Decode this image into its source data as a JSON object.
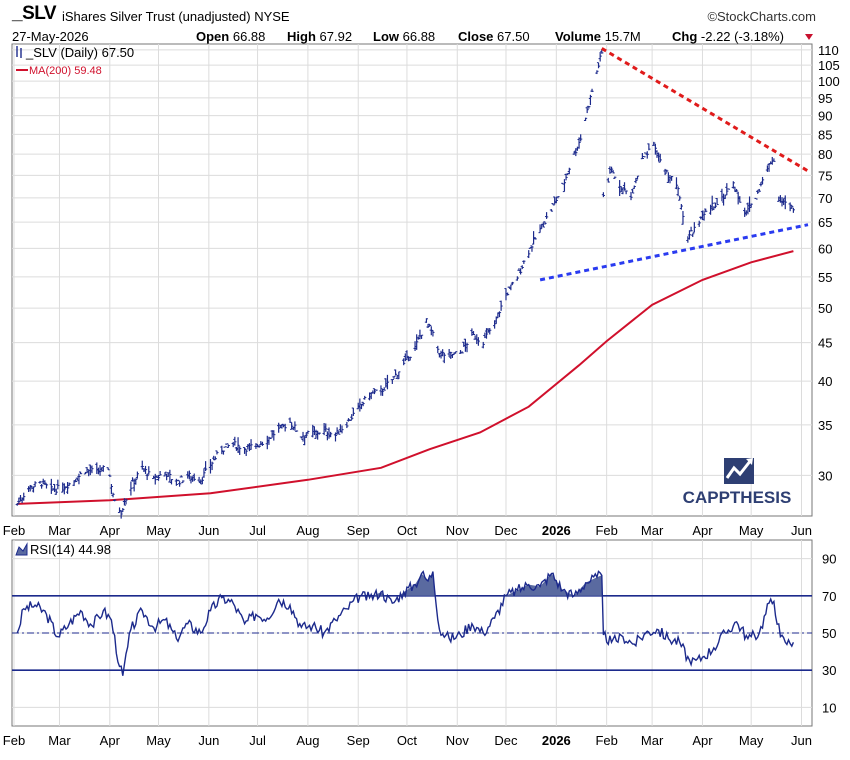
{
  "header": {
    "symbol": "_SLV",
    "name": "iShares Silver Trust (unadjusted) NYSE",
    "brand": "©StockCharts.com",
    "date": "27-May-2026",
    "open_label": "Open",
    "open": "66.88",
    "high_label": "High",
    "high": "67.92",
    "low_label": "Low",
    "low": "66.88",
    "close_label": "Close",
    "close": "67.50",
    "volume_label": "Volume",
    "volume": "15.7M",
    "chg_label": "Chg",
    "chg": "-2.22 (-3.18%)"
  },
  "legend": {
    "price": "_SLV (Daily) 67.50",
    "ma": "MA(200) 59.48",
    "rsi": "RSI(14) 44.98"
  },
  "watermark": {
    "text": "CAPPTHESIS"
  },
  "colors": {
    "price": "#1c2a8c",
    "ma": "#d0102c",
    "resistance": "#e01b1b",
    "support": "#2a3bf0",
    "rsi": "#1c2a8c",
    "rsi_fill": "#5a6aa0",
    "grid": "#dcdcdc",
    "watermark": "#2e3f73"
  },
  "chart_data": [
    {
      "type": "line",
      "panel": "price",
      "y_scale": "log",
      "ylim": [
        26.5,
        112
      ],
      "x_ticks": [
        "Feb",
        "Mar",
        "Apr",
        "May",
        "Jun",
        "Jul",
        "Aug",
        "Sep",
        "Oct",
        "Nov",
        "Dec",
        "2026",
        "Feb",
        "Mar",
        "Apr",
        "May",
        "Jun"
      ],
      "y_ticks": [
        30,
        35,
        40,
        45,
        50,
        55,
        60,
        65,
        70,
        75,
        80,
        85,
        90,
        95,
        100,
        105,
        110
      ],
      "series": [
        {
          "name": "_SLV (Daily)",
          "style": "ohlc-bars",
          "points": [
            [
              "2025-02-03",
              27.5
            ],
            [
              "2025-02-10",
              28.9
            ],
            [
              "2025-02-18",
              29.3
            ],
            [
              "2025-02-24",
              28.7
            ],
            [
              "2025-03-03",
              28.9
            ],
            [
              "2025-03-10",
              29.5
            ],
            [
              "2025-03-17",
              30.5
            ],
            [
              "2025-03-24",
              30.3
            ],
            [
              "2025-03-31",
              30.7
            ],
            [
              "2025-04-04",
              27.6
            ],
            [
              "2025-04-08",
              26.9
            ],
            [
              "2025-04-14",
              29.0
            ],
            [
              "2025-04-21",
              30.7
            ],
            [
              "2025-04-28",
              29.6
            ],
            [
              "2025-05-05",
              30.3
            ],
            [
              "2025-05-12",
              29.3
            ],
            [
              "2025-05-19",
              30.0
            ],
            [
              "2025-05-27",
              29.6
            ],
            [
              "2025-06-02",
              31.0
            ],
            [
              "2025-06-09",
              32.5
            ],
            [
              "2025-06-16",
              33.0
            ],
            [
              "2025-06-23",
              32.6
            ],
            [
              "2025-06-30",
              32.8
            ],
            [
              "2025-07-07",
              33.5
            ],
            [
              "2025-07-14",
              34.5
            ],
            [
              "2025-07-21",
              35.3
            ],
            [
              "2025-07-28",
              33.9
            ],
            [
              "2025-08-04",
              34.1
            ],
            [
              "2025-08-11",
              34.4
            ],
            [
              "2025-08-18",
              33.9
            ],
            [
              "2025-08-25",
              35.2
            ],
            [
              "2025-09-02",
              37.0
            ],
            [
              "2025-09-08",
              38.4
            ],
            [
              "2025-09-15",
              38.8
            ],
            [
              "2025-09-22",
              40.2
            ],
            [
              "2025-09-29",
              42.1
            ],
            [
              "2025-10-06",
              44.3
            ],
            [
              "2025-10-13",
              48.0
            ],
            [
              "2025-10-17",
              46.0
            ],
            [
              "2025-10-21",
              43.5
            ],
            [
              "2025-10-27",
              43.3
            ],
            [
              "2025-11-03",
              43.6
            ],
            [
              "2025-11-10",
              46.0
            ],
            [
              "2025-11-17",
              45.2
            ],
            [
              "2025-11-24",
              47.8
            ],
            [
              "2025-12-01",
              52.0
            ],
            [
              "2025-12-08",
              55.0
            ],
            [
              "2025-12-15",
              59.5
            ],
            [
              "2025-12-22",
              63.5
            ],
            [
              "2025-12-29",
              67.5
            ],
            [
              "2026-01-05",
              72.5
            ],
            [
              "2026-01-12",
              80.0
            ],
            [
              "2026-01-16",
              84.0
            ],
            [
              "2026-01-22",
              95.0
            ],
            [
              "2026-01-27",
              105.0
            ],
            [
              "2026-01-29",
              109.0
            ],
            [
              "2026-01-30",
              70.5
            ],
            [
              "2026-02-04",
              76.0
            ],
            [
              "2026-02-09",
              73.0
            ],
            [
              "2026-02-16",
              70.0
            ],
            [
              "2026-02-23",
              78.5
            ],
            [
              "2026-03-02",
              82.0
            ],
            [
              "2026-03-09",
              76.0
            ],
            [
              "2026-03-16",
              73.0
            ],
            [
              "2026-03-23",
              62.0
            ],
            [
              "2026-03-30",
              65.0
            ],
            [
              "2026-04-06",
              68.0
            ],
            [
              "2026-04-13",
              70.0
            ],
            [
              "2026-04-20",
              73.0
            ],
            [
              "2026-04-27",
              67.0
            ],
            [
              "2026-05-04",
              70.0
            ],
            [
              "2026-05-11",
              76.5
            ],
            [
              "2026-05-15",
              79.0
            ],
            [
              "2026-05-18",
              70.0
            ],
            [
              "2026-05-22",
              69.0
            ],
            [
              "2026-05-27",
              67.5
            ]
          ]
        },
        {
          "name": "MA(200)",
          "points": [
            [
              "2025-02-03",
              27.5
            ],
            [
              "2025-04-01",
              27.8
            ],
            [
              "2025-06-02",
              28.4
            ],
            [
              "2025-08-01",
              29.6
            ],
            [
              "2025-09-15",
              30.7
            ],
            [
              "2025-10-15",
              32.5
            ],
            [
              "2025-11-15",
              34.2
            ],
            [
              "2025-12-15",
              37.0
            ],
            [
              "2026-01-15",
              42.0
            ],
            [
              "2026-02-01",
              45.2
            ],
            [
              "2026-03-01",
              50.5
            ],
            [
              "2026-04-01",
              54.5
            ],
            [
              "2026-05-01",
              57.5
            ],
            [
              "2026-05-27",
              59.5
            ]
          ]
        },
        {
          "name": "resistance trendline",
          "points": [
            [
              "2026-01-29",
              110.5
            ],
            [
              "2026-06-05",
              76.0
            ]
          ]
        },
        {
          "name": "support trendline",
          "points": [
            [
              "2025-12-22",
              54.5
            ],
            [
              "2026-06-05",
              64.5
            ]
          ]
        }
      ]
    },
    {
      "type": "area",
      "panel": "rsi",
      "ylim": [
        0,
        100
      ],
      "y_ticks": [
        10,
        30,
        50,
        70,
        90
      ],
      "reference_lines": [
        30,
        50,
        70
      ],
      "fill_above": 70,
      "series": [
        {
          "name": "RSI(14)",
          "points": [
            [
              "2025-02-03",
              50
            ],
            [
              "2025-02-07",
              63
            ],
            [
              "2025-02-14",
              65
            ],
            [
              "2025-02-21",
              60
            ],
            [
              "2025-02-28",
              48
            ],
            [
              "2025-03-07",
              55
            ],
            [
              "2025-03-14",
              62
            ],
            [
              "2025-03-21",
              54
            ],
            [
              "2025-03-28",
              62
            ],
            [
              "2025-04-02",
              57
            ],
            [
              "2025-04-07",
              32
            ],
            [
              "2025-04-09",
              27
            ],
            [
              "2025-04-14",
              52
            ],
            [
              "2025-04-21",
              62
            ],
            [
              "2025-04-28",
              53
            ],
            [
              "2025-05-05",
              57
            ],
            [
              "2025-05-12",
              47
            ],
            [
              "2025-05-19",
              55
            ],
            [
              "2025-05-27",
              50
            ],
            [
              "2025-06-02",
              62
            ],
            [
              "2025-06-09",
              69
            ],
            [
              "2025-06-16",
              66
            ],
            [
              "2025-06-23",
              55
            ],
            [
              "2025-06-30",
              60
            ],
            [
              "2025-07-07",
              58
            ],
            [
              "2025-07-14",
              68
            ],
            [
              "2025-07-21",
              65
            ],
            [
              "2025-07-28",
              53
            ],
            [
              "2025-08-04",
              54
            ],
            [
              "2025-08-11",
              50
            ],
            [
              "2025-08-18",
              57
            ],
            [
              "2025-08-25",
              63
            ],
            [
              "2025-09-02",
              70
            ],
            [
              "2025-09-08",
              69
            ],
            [
              "2025-09-15",
              72
            ],
            [
              "2025-09-22",
              66
            ],
            [
              "2025-09-29",
              72
            ],
            [
              "2025-10-06",
              76
            ],
            [
              "2025-10-10",
              82
            ],
            [
              "2025-10-14",
              78
            ],
            [
              "2025-10-17",
              83
            ],
            [
              "2025-10-21",
              52
            ],
            [
              "2025-10-27",
              47
            ],
            [
              "2025-11-03",
              49
            ],
            [
              "2025-11-10",
              55
            ],
            [
              "2025-11-17",
              50
            ],
            [
              "2025-11-24",
              58
            ],
            [
              "2025-12-01",
              70
            ],
            [
              "2025-12-08",
              73
            ],
            [
              "2025-12-15",
              76
            ],
            [
              "2025-12-22",
              75
            ],
            [
              "2025-12-29",
              82
            ],
            [
              "2026-01-05",
              73
            ],
            [
              "2026-01-12",
              70
            ],
            [
              "2026-01-19",
              77
            ],
            [
              "2026-01-26",
              80
            ],
            [
              "2026-01-29",
              81
            ],
            [
              "2026-01-30",
              49
            ],
            [
              "2026-02-04",
              45
            ],
            [
              "2026-02-11",
              48
            ],
            [
              "2026-02-18",
              44
            ],
            [
              "2026-02-25",
              50
            ],
            [
              "2026-03-04",
              52
            ],
            [
              "2026-03-11",
              47
            ],
            [
              "2026-03-18",
              45
            ],
            [
              "2026-03-25",
              33
            ],
            [
              "2026-04-01",
              37
            ],
            [
              "2026-04-08",
              42
            ],
            [
              "2026-04-15",
              50
            ],
            [
              "2026-04-22",
              56
            ],
            [
              "2026-04-29",
              47
            ],
            [
              "2026-05-06",
              50
            ],
            [
              "2026-05-12",
              66
            ],
            [
              "2026-05-15",
              67
            ],
            [
              "2026-05-19",
              48
            ],
            [
              "2026-05-22",
              45
            ],
            [
              "2026-05-27",
              44.98
            ]
          ]
        }
      ]
    }
  ]
}
